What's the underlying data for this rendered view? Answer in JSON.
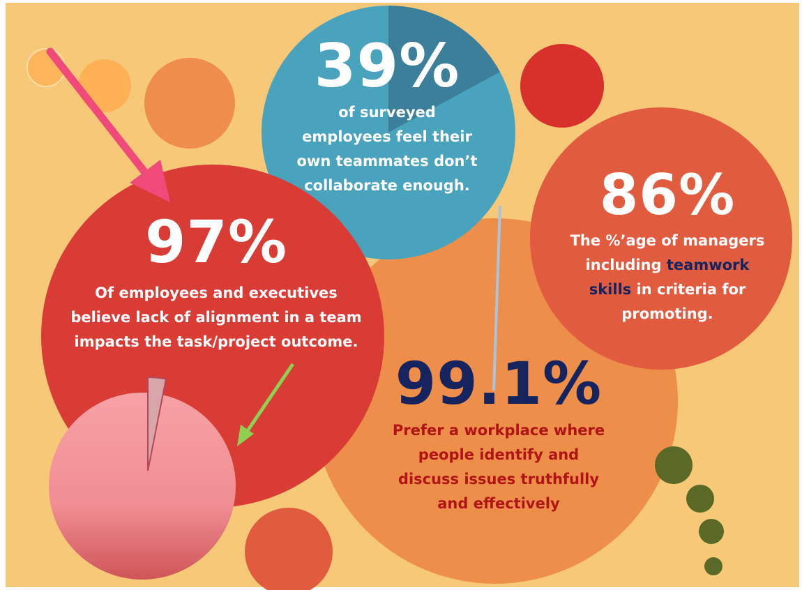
{
  "stats": [
    {
      "id": "stat-39",
      "value": "39%",
      "description": "of surveyed employees feel their own teammates don’t collaborate enough."
    },
    {
      "id": "stat-86",
      "value": "86%",
      "description_before": "The %’age of managers including ",
      "description_highlight": "teamwork skills",
      "description_after": " in criteria for promoting."
    },
    {
      "id": "stat-97",
      "value": "97%",
      "description": "Of employees and executives believe lack of alignment in a team impacts the task/project outcome."
    },
    {
      "id": "stat-991",
      "value": "99.1%",
      "description": "Prefer a workplace where people identify and discuss issues truthfully and effectively"
    }
  ],
  "colors": {
    "background": "#f6c878",
    "blue_circle": "#4aa3bd",
    "blue_slice": "#3b7f9a",
    "red_circle": "#d93b35",
    "orange_big_circle": "#ed8e4a",
    "orange_red_circle": "#e15b3e",
    "pie_pink": "#f4959a",
    "pie_slice": "#d8a6a8",
    "arrow_pink": "#f04a7a",
    "arrow_green": "#8fcf52",
    "dot_green": "#5a6a26",
    "navy_text": "#15235e",
    "dark_red_text": "#b01414",
    "white_text": "#ffffff"
  },
  "icons": {
    "pink_arrow": "arrow-down-right-icon",
    "green_arrow": "arrow-down-left-icon",
    "pie": "pie-chart-icon"
  }
}
